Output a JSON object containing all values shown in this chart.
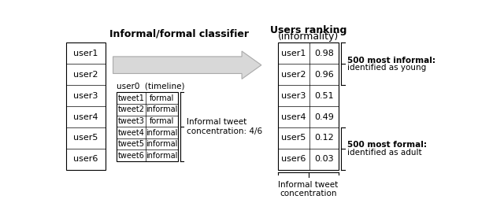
{
  "title_classifier": "Informal/formal classifier",
  "title_ranking_line1": "Users ranking",
  "title_ranking_line2": "(informality)",
  "left_users": [
    "user1",
    "user2",
    "user3",
    "user4",
    "user5",
    "user6"
  ],
  "timeline_label": "user0  (timeline)",
  "tweets": [
    "tweet1",
    "tweet2",
    "tweet3",
    "tweet4",
    "tweet5",
    "tweet6"
  ],
  "tweet_labels": [
    "formal",
    "informal",
    "formal",
    "informal",
    "informal",
    "informal"
  ],
  "concentration_label": "Informal tweet\nconcentration: 4/6",
  "ranking_users": [
    "user1",
    "user2",
    "user3",
    "user4",
    "user5",
    "user6"
  ],
  "ranking_values": [
    "0.98",
    "0.96",
    "0.51",
    "0.49",
    "0.12",
    "0.03"
  ],
  "informal_label_bold": "500 most informal:",
  "informal_label_normal": "identified as young",
  "formal_label_bold": "500 most formal:",
  "formal_label_normal": "identified as adult",
  "bottom_label": "Informal tweet\nconcentration",
  "bg_color": "#ffffff",
  "arrow_color": "#d8d8d8",
  "arrow_edge_color": "#aaaaaa",
  "font_size": 8,
  "small_font_size": 7.5
}
